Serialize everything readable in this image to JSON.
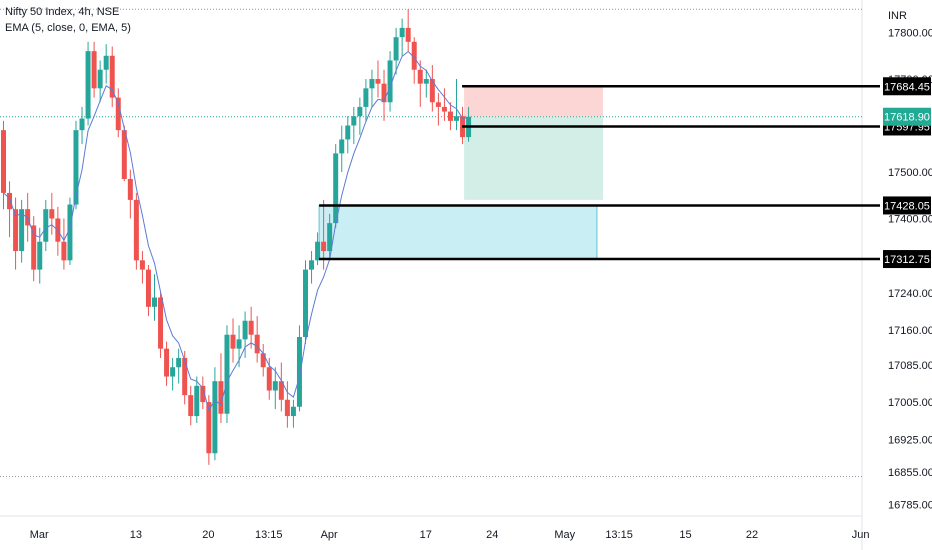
{
  "legend": {
    "symbol": "Nifty 50 Index, 4h, NSE",
    "indicator": "EMA (5, close, 0, EMA, 5)"
  },
  "currency": "INR",
  "colors": {
    "up": "#26a69a",
    "down": "#ef5350",
    "ema": "#5b7bd6",
    "last_price": "#22ab94",
    "stop_zone": "#fbd6d5",
    "target_zone": "#d3eee7",
    "demand_zone": "#c9eef4"
  },
  "chart_data": {
    "type": "candlestick",
    "y_range": [
      16760,
      17870
    ],
    "y_ticks": [
      17800,
      17700,
      17500,
      17400,
      17240,
      17160,
      17085,
      17005,
      16925,
      16855,
      16785
    ],
    "y_tick_labels": [
      "17800.00",
      "17700.00",
      "17500.00",
      "17400.00",
      "17240.00",
      "17160.00",
      "17085.00",
      "17005.00",
      "16925.00",
      "16855.00",
      "16785.00"
    ],
    "x_labels": [
      "Mar",
      "13",
      "20",
      "13:15",
      "Apr",
      "17",
      "24",
      "May",
      "13:15",
      "15",
      "22",
      "Jun"
    ],
    "x_label_bar_index": [
      6,
      22,
      34,
      44,
      54,
      70,
      81,
      93,
      102,
      113,
      124,
      142
    ],
    "levels": [
      {
        "label": "17684.45",
        "value": 17684.45
      },
      {
        "label": "17597.95",
        "value": 17597.95
      },
      {
        "label": "17428.05",
        "value": 17428.05
      },
      {
        "label": "17312.75",
        "value": 17312.75
      }
    ],
    "last_price": {
      "label": "17618.90",
      "value": 17618.9
    },
    "dotted_high": 17850,
    "dotted_low": 16845,
    "position": {
      "start_index": 77,
      "end_index": 99,
      "entry": 17618.9,
      "stop": 17684.45,
      "target": 17440
    },
    "demand_zone": {
      "start_index": 53,
      "end_index": 98,
      "top": 17428.05,
      "bottom": 17312.75
    },
    "candles": [
      [
        17590,
        17610,
        17420,
        17455
      ],
      [
        17455,
        17480,
        17360,
        17420
      ],
      [
        17420,
        17445,
        17290,
        17330
      ],
      [
        17330,
        17440,
        17305,
        17420
      ],
      [
        17420,
        17455,
        17350,
        17385
      ],
      [
        17385,
        17405,
        17265,
        17290
      ],
      [
        17290,
        17380,
        17260,
        17350
      ],
      [
        17350,
        17440,
        17330,
        17420
      ],
      [
        17420,
        17455,
        17365,
        17400
      ],
      [
        17400,
        17425,
        17320,
        17350
      ],
      [
        17350,
        17400,
        17290,
        17310
      ],
      [
        17310,
        17445,
        17300,
        17430
      ],
      [
        17430,
        17610,
        17420,
        17590
      ],
      [
        17590,
        17640,
        17560,
        17615
      ],
      [
        17615,
        17780,
        17600,
        17760
      ],
      [
        17760,
        17780,
        17660,
        17680
      ],
      [
        17680,
        17740,
        17650,
        17720
      ],
      [
        17720,
        17775,
        17690,
        17750
      ],
      [
        17750,
        17770,
        17640,
        17660
      ],
      [
        17660,
        17680,
        17575,
        17590
      ],
      [
        17590,
        17600,
        17480,
        17485
      ],
      [
        17485,
        17505,
        17400,
        17440
      ],
      [
        17440,
        17455,
        17290,
        17310
      ],
      [
        17310,
        17330,
        17260,
        17290
      ],
      [
        17290,
        17300,
        17190,
        17210
      ],
      [
        17210,
        17280,
        17180,
        17230
      ],
      [
        17230,
        17240,
        17100,
        17120
      ],
      [
        17120,
        17135,
        17040,
        17060
      ],
      [
        17060,
        17100,
        17030,
        17080
      ],
      [
        17080,
        17120,
        17045,
        17100
      ],
      [
        17100,
        17115,
        17000,
        17020
      ],
      [
        17020,
        17040,
        16955,
        16975
      ],
      [
        16975,
        17060,
        16960,
        17040
      ],
      [
        17040,
        17060,
        16990,
        17005
      ],
      [
        17005,
        17020,
        16870,
        16895
      ],
      [
        16895,
        17080,
        16880,
        17050
      ],
      [
        17050,
        17110,
        16960,
        16980
      ],
      [
        16980,
        17170,
        16960,
        17150
      ],
      [
        17150,
        17185,
        17090,
        17120
      ],
      [
        17120,
        17170,
        17080,
        17140
      ],
      [
        17140,
        17200,
        17100,
        17180
      ],
      [
        17180,
        17210,
        17120,
        17150
      ],
      [
        17150,
        17190,
        17090,
        17110
      ],
      [
        17110,
        17130,
        17060,
        17080
      ],
      [
        17080,
        17100,
        17010,
        17030
      ],
      [
        17030,
        17080,
        16990,
        17050
      ],
      [
        17050,
        17090,
        16985,
        17010
      ],
      [
        17010,
        17050,
        16950,
        16975
      ],
      [
        16975,
        17010,
        16950,
        16995
      ],
      [
        16995,
        17170,
        16985,
        17145
      ],
      [
        17145,
        17310,
        17130,
        17290
      ],
      [
        17290,
        17330,
        17260,
        17310
      ],
      [
        17310,
        17370,
        17300,
        17350
      ],
      [
        17350,
        17440,
        17290,
        17330
      ],
      [
        17330,
        17410,
        17310,
        17390
      ],
      [
        17390,
        17560,
        17380,
        17540
      ],
      [
        17540,
        17600,
        17500,
        17570
      ],
      [
        17570,
        17620,
        17540,
        17600
      ],
      [
        17600,
        17640,
        17560,
        17620
      ],
      [
        17620,
        17660,
        17580,
        17640
      ],
      [
        17640,
        17700,
        17610,
        17680
      ],
      [
        17680,
        17720,
        17640,
        17700
      ],
      [
        17700,
        17740,
        17660,
        17690
      ],
      [
        17690,
        17720,
        17610,
        17650
      ],
      [
        17650,
        17760,
        17630,
        17740
      ],
      [
        17740,
        17810,
        17710,
        17790
      ],
      [
        17790,
        17830,
        17750,
        17810
      ],
      [
        17810,
        17850,
        17760,
        17780
      ],
      [
        17780,
        17790,
        17690,
        17720
      ],
      [
        17720,
        17740,
        17640,
        17690
      ],
      [
        17690,
        17720,
        17660,
        17700
      ],
      [
        17700,
        17730,
        17630,
        17650
      ],
      [
        17650,
        17670,
        17600,
        17640
      ],
      [
        17640,
        17680,
        17610,
        17630
      ],
      [
        17630,
        17650,
        17590,
        17610
      ],
      [
        17610,
        17700,
        17590,
        17620
      ],
      [
        17620,
        17640,
        17560,
        17575
      ],
      [
        17575,
        17640,
        17565,
        17618.9
      ]
    ],
    "ema_period": 5
  }
}
